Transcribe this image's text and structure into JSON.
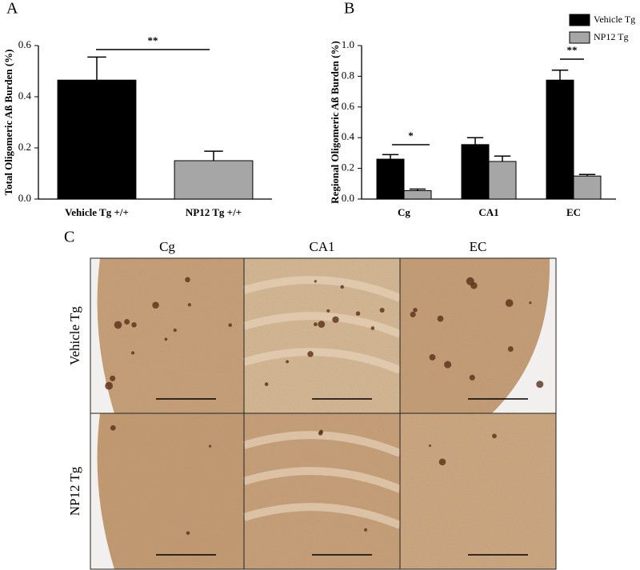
{
  "chart_data": [
    {
      "type": "bar",
      "panel_label": "A",
      "ylabel": "Total Oligomeric Aß Burden (%)",
      "categories": [
        "Vehicle Tg +/+",
        "NP12  Tg +/+"
      ],
      "values": [
        0.465,
        0.15
      ],
      "errors": [
        0.09,
        0.037
      ],
      "colors": [
        "#000000",
        "#a6a6a6"
      ],
      "ylim": [
        0,
        0.6
      ],
      "yticks": [
        {
          "value": 0,
          "label": "0.0"
        },
        0.2,
        0.4,
        0.6
      ],
      "annotations": [
        "**"
      ]
    },
    {
      "type": "bar",
      "panel_label": "B",
      "ylabel": "Regional Oligomeric Aß Burden (%)",
      "categories": [
        "Cg",
        "CA1",
        "EC"
      ],
      "series": [
        {
          "name": "Vehicle Tg",
          "color": "#000000",
          "values": [
            0.26,
            0.355,
            0.775
          ],
          "errors": [
            0.03,
            0.045,
            0.065
          ]
        },
        {
          "name": "NP12  Tg",
          "color": "#a6a6a6",
          "values": [
            0.055,
            0.245,
            0.15
          ],
          "errors": [
            0.01,
            0.035,
            0.01
          ]
        }
      ],
      "ylim": [
        0,
        1.0
      ],
      "yticks": [
        {
          "value": 0,
          "label": "0.0"
        },
        0.2,
        0.4,
        0.6,
        0.8,
        {
          "value": 1.0,
          "label": "1.0"
        }
      ],
      "legend": "upper right",
      "annotations": [
        "*",
        "**"
      ]
    }
  ],
  "panel_c": {
    "panel_label": "C",
    "columns": [
      "Cg",
      "CA1",
      "EC"
    ],
    "rows": [
      "Vehicle Tg",
      "NP12 Tg"
    ]
  }
}
